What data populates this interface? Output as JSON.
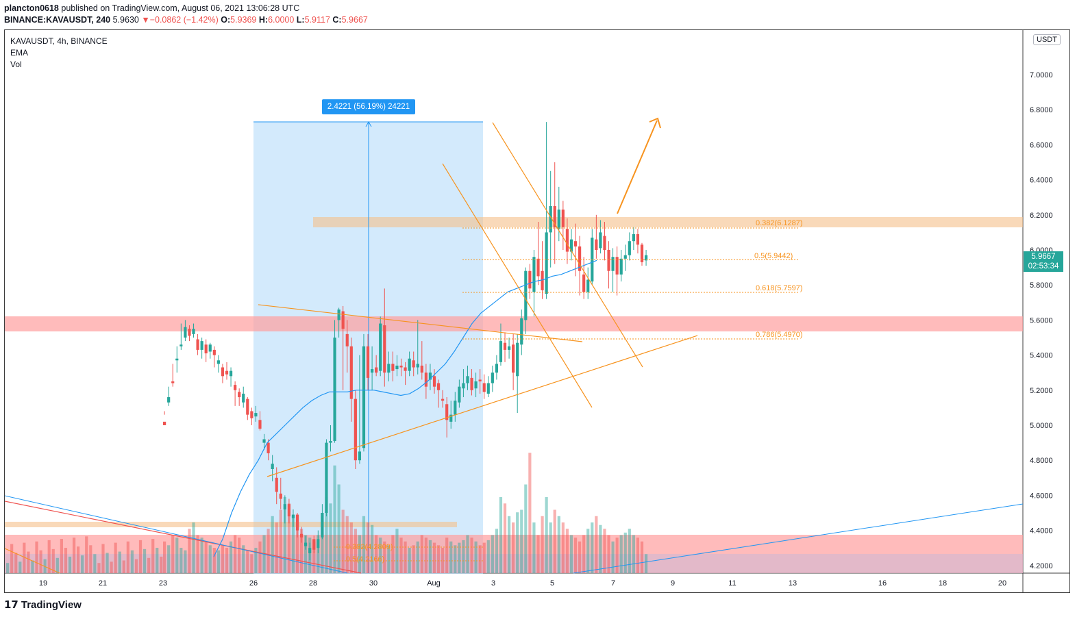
{
  "header": {
    "author": "plancton0618",
    "published_text": " published on TradingView.com, August 06, 2021 13:06:28 UTC",
    "symbol": "BINANCE:KAVAUSDT, 240",
    "last": "5.9630",
    "change": "−0.0862 (−1.42%)",
    "o_label": "O:",
    "o": "5.9369",
    "h_label": "H:",
    "h": "6.0000",
    "l_label": "L:",
    "l": "5.9117",
    "c_label": "C:",
    "c": "5.9667"
  },
  "legend": {
    "title": "KAVAUSDT, 4h, BINANCE",
    "ema": "EMA",
    "vol": "Vol"
  },
  "price_scale": {
    "unit": "USDT",
    "ticks": [
      "7.0000",
      "6.8000",
      "6.6000",
      "6.4000",
      "6.2000",
      "6.0000",
      "5.8000",
      "5.6000",
      "5.4000",
      "5.2000",
      "5.0000",
      "4.8000",
      "4.6000",
      "4.4000",
      "4.2000"
    ],
    "last_price": "5.9667",
    "countdown": "02:53:34"
  },
  "time_axis": [
    "19",
    "21",
    "23",
    "26",
    "28",
    "30",
    "Aug",
    "3",
    "5",
    "7",
    "9",
    "11",
    "13",
    "16",
    "18",
    "20"
  ],
  "measure_label": "2.4221 (56.19%) 24221",
  "fib_labels": [
    "0.382(6.1287)",
    "0.5(5.9442)",
    "0.618(5.7597)",
    "0.786(5.4970)"
  ],
  "fib_labels_low": [
    "0.382(4.2809)",
    "0.5(4.2166)"
  ],
  "brand": "TradingView",
  "colors": {
    "up": "#26a69a",
    "down": "#ef5350",
    "ema": "#2196f3",
    "drawing": "#f7931e"
  },
  "chart_data": {
    "type": "candlestick",
    "symbol": "KAVAUSDT",
    "interval": "4h",
    "ylim": [
      4.15,
      7.1
    ],
    "y_scale": "linear",
    "candles": [
      [
        5.02,
        5.0,
        5.08,
        5.06
      ],
      [
        5.13,
        5.16,
        5.22,
        5.11
      ],
      [
        5.25,
        5.24,
        5.35,
        5.22
      ],
      [
        5.37,
        5.38,
        5.45,
        5.3
      ],
      [
        5.45,
        5.46,
        5.58,
        5.43
      ],
      [
        5.5,
        5.56,
        5.6,
        5.48
      ],
      [
        5.55,
        5.51,
        5.57,
        5.48
      ],
      [
        5.52,
        5.55,
        5.58,
        5.5
      ],
      [
        5.49,
        5.43,
        5.52,
        5.4
      ],
      [
        5.43,
        5.48,
        5.5,
        5.38
      ],
      [
        5.46,
        5.41,
        5.49,
        5.36
      ],
      [
        5.42,
        5.46,
        5.47,
        5.38
      ],
      [
        5.43,
        5.4,
        5.45,
        5.33
      ],
      [
        5.35,
        5.37,
        5.4,
        5.3
      ],
      [
        5.33,
        5.28,
        5.35,
        5.24
      ],
      [
        5.31,
        5.29,
        5.36,
        5.26
      ],
      [
        5.28,
        5.31,
        5.33,
        5.22
      ],
      [
        5.23,
        5.2,
        5.25,
        5.11
      ],
      [
        5.19,
        5.16,
        5.21,
        5.11
      ],
      [
        5.13,
        5.18,
        5.22,
        5.1
      ],
      [
        5.15,
        5.06,
        5.16,
        5.03
      ],
      [
        5.08,
        5.04,
        5.1,
        5.0
      ],
      [
        5.05,
        5.07,
        5.11,
        5.02
      ],
      [
        5.03,
        4.98,
        5.08,
        4.97
      ],
      [
        4.9,
        4.92,
        4.95,
        4.86
      ],
      [
        4.9,
        4.84,
        4.92,
        4.8
      ],
      [
        4.75,
        4.78,
        4.83,
        4.68
      ],
      [
        4.7,
        4.62,
        4.76,
        4.55
      ],
      [
        4.61,
        4.58,
        4.7,
        4.52
      ],
      [
        4.52,
        4.55,
        4.6,
        4.44
      ],
      [
        4.55,
        4.48,
        4.58,
        4.44
      ],
      [
        4.47,
        4.49,
        4.52,
        4.42
      ],
      [
        4.49,
        4.4,
        4.5,
        4.36
      ],
      [
        4.38,
        4.36,
        4.42,
        4.33
      ],
      [
        4.31,
        4.33,
        4.37,
        4.29
      ],
      [
        4.27,
        4.3,
        4.33,
        4.23
      ],
      [
        4.35,
        4.29,
        4.37,
        4.27
      ],
      [
        4.3,
        4.35,
        4.4,
        4.27
      ],
      [
        4.36,
        4.5,
        4.55,
        4.35
      ],
      [
        4.5,
        4.9,
        4.92,
        4.48
      ],
      [
        4.9,
        4.91,
        5.0,
        4.85
      ],
      [
        4.91,
        5.5,
        5.6,
        4.9
      ],
      [
        5.6,
        5.66,
        5.67,
        5.5
      ],
      [
        5.65,
        5.55,
        5.68,
        5.2
      ],
      [
        5.52,
        5.45,
        5.6,
        5.3
      ],
      [
        5.45,
        5.15,
        5.5,
        5.02
      ],
      [
        5.15,
        4.8,
        5.2,
        4.75
      ],
      [
        4.8,
        4.85,
        5.4,
        4.78
      ],
      [
        4.87,
        5.45,
        5.52,
        4.85
      ],
      [
        5.45,
        5.27,
        5.52,
        5.2
      ],
      [
        5.3,
        5.32,
        5.45,
        5.2
      ],
      [
        5.33,
        5.3,
        5.4,
        5.28
      ],
      [
        5.31,
        5.58,
        5.62,
        5.28
      ],
      [
        5.57,
        5.3,
        5.78,
        5.22
      ],
      [
        5.3,
        5.35,
        5.42,
        5.25
      ],
      [
        5.35,
        5.31,
        5.42,
        5.25
      ],
      [
        5.32,
        5.34,
        5.4,
        5.28
      ],
      [
        5.34,
        5.33,
        5.38,
        5.28
      ],
      [
        5.33,
        5.31,
        5.36,
        5.23
      ],
      [
        5.31,
        5.38,
        5.42,
        5.28
      ],
      [
        5.37,
        5.33,
        5.42,
        5.28
      ],
      [
        5.33,
        5.35,
        5.6,
        5.29
      ],
      [
        5.34,
        5.3,
        5.48,
        5.26
      ],
      [
        5.3,
        5.22,
        5.35,
        5.15
      ],
      [
        5.26,
        5.3,
        5.35,
        5.2
      ],
      [
        5.28,
        5.22,
        5.32,
        5.18
      ],
      [
        5.24,
        5.2,
        5.26,
        5.1
      ],
      [
        5.15,
        5.14,
        5.2,
        5.1
      ],
      [
        5.12,
        5.03,
        5.16,
        4.93
      ],
      [
        5.02,
        5.06,
        5.14,
        4.98
      ],
      [
        5.06,
        5.14,
        5.19,
        5.02
      ],
      [
        5.13,
        5.22,
        5.26,
        5.1
      ],
      [
        5.21,
        5.24,
        5.32,
        5.16
      ],
      [
        5.24,
        5.28,
        5.34,
        5.2
      ],
      [
        5.27,
        5.2,
        5.32,
        5.17
      ],
      [
        5.21,
        5.25,
        5.3,
        5.16
      ],
      [
        5.26,
        5.25,
        5.32,
        5.18
      ],
      [
        5.24,
        5.19,
        5.29,
        5.15
      ],
      [
        5.18,
        5.24,
        5.28,
        5.16
      ],
      [
        5.24,
        5.3,
        5.34,
        5.19
      ],
      [
        5.3,
        5.35,
        5.4,
        5.26
      ],
      [
        5.36,
        5.48,
        5.58,
        5.34
      ],
      [
        5.47,
        5.43,
        5.53,
        5.36
      ],
      [
        5.43,
        5.45,
        5.5,
        5.38
      ],
      [
        5.46,
        5.3,
        5.52,
        5.2
      ],
      [
        5.28,
        5.47,
        5.52,
        5.07
      ],
      [
        5.46,
        5.61,
        5.66,
        5.4
      ],
      [
        5.6,
        5.88,
        5.9,
        5.52
      ],
      [
        5.88,
        5.78,
        5.92,
        5.72
      ],
      [
        5.76,
        5.96,
        6.0,
        5.62
      ],
      [
        5.95,
        5.85,
        6.16,
        5.8
      ],
      [
        5.88,
        5.77,
        6.05,
        5.72
      ],
      [
        5.75,
        6.1,
        6.73,
        5.72
      ],
      [
        6.1,
        6.25,
        6.45,
        5.9
      ],
      [
        6.25,
        6.13,
        6.5,
        5.92
      ],
      [
        6.12,
        6.23,
        6.36,
        6.05
      ],
      [
        6.23,
        6.13,
        6.28,
        6.0
      ],
      [
        6.12,
        5.99,
        6.18,
        5.92
      ],
      [
        5.99,
        6.06,
        6.12,
        5.94
      ],
      [
        6.05,
        6.02,
        6.15,
        5.85
      ],
      [
        6.02,
        5.88,
        6.08,
        5.74
      ],
      [
        5.86,
        5.76,
        5.96,
        5.72
      ],
      [
        5.76,
        5.83,
        5.9,
        5.72
      ],
      [
        5.82,
        6.07,
        6.12,
        5.8
      ],
      [
        6.06,
        6.0,
        6.2,
        5.95
      ],
      [
        6.01,
        6.1,
        6.17,
        5.98
      ],
      [
        6.08,
        6.0,
        6.16,
        5.94
      ],
      [
        6.0,
        5.88,
        6.05,
        5.78
      ],
      [
        5.88,
        5.96,
        6.01,
        5.76
      ],
      [
        5.96,
        5.86,
        6.02,
        5.74
      ],
      [
        5.86,
        5.95,
        6.0,
        5.82
      ],
      [
        5.95,
        5.97,
        6.03,
        5.88
      ],
      [
        5.97,
        6.05,
        6.1,
        5.94
      ],
      [
        6.05,
        6.09,
        6.13,
        6.0
      ],
      [
        6.09,
        6.03,
        6.12,
        5.98
      ],
      [
        6.03,
        5.93,
        6.04,
        5.91
      ],
      [
        5.94,
        5.97,
        6.0,
        5.91
      ]
    ],
    "volume_max_units": 100,
    "volumes": [
      25,
      22,
      30,
      28,
      20,
      18,
      35,
      40,
      30,
      28,
      25,
      22,
      20,
      18,
      22,
      20,
      25,
      30,
      28,
      22,
      18,
      15,
      20,
      25,
      30,
      35,
      45,
      40,
      50,
      60,
      55,
      45,
      40,
      35,
      30,
      28,
      25,
      30,
      45,
      60,
      55,
      85,
      70,
      50,
      45,
      40,
      35,
      30,
      45,
      40,
      38,
      30,
      28,
      25,
      22,
      30,
      35,
      28,
      25,
      20,
      22,
      25,
      30,
      28,
      26,
      24,
      22,
      20,
      28,
      25,
      22,
      24,
      26,
      30,
      28,
      25,
      22,
      24,
      26,
      30,
      35,
      60,
      55,
      45,
      40,
      48,
      50,
      70,
      95,
      40,
      30,
      45,
      60,
      40,
      50,
      45,
      40,
      35,
      30,
      28,
      25,
      30,
      35,
      40,
      45,
      38,
      35,
      30,
      25,
      28,
      30,
      32,
      35,
      30,
      28,
      25,
      15
    ],
    "ema": [
      4.25,
      4.35,
      4.5,
      4.62,
      4.72,
      4.8,
      4.9,
      4.95,
      5.0,
      5.05,
      5.1,
      5.14,
      5.17,
      5.19,
      5.19,
      5.19,
      5.2,
      5.2,
      5.2,
      5.19,
      5.18,
      5.17,
      5.18,
      5.21,
      5.25,
      5.3,
      5.35,
      5.42,
      5.5,
      5.58,
      5.64,
      5.68,
      5.72,
      5.76,
      5.78,
      5.8,
      5.82,
      5.83,
      5.85,
      5.86,
      5.88,
      5.9,
      5.92,
      5.94
    ]
  }
}
